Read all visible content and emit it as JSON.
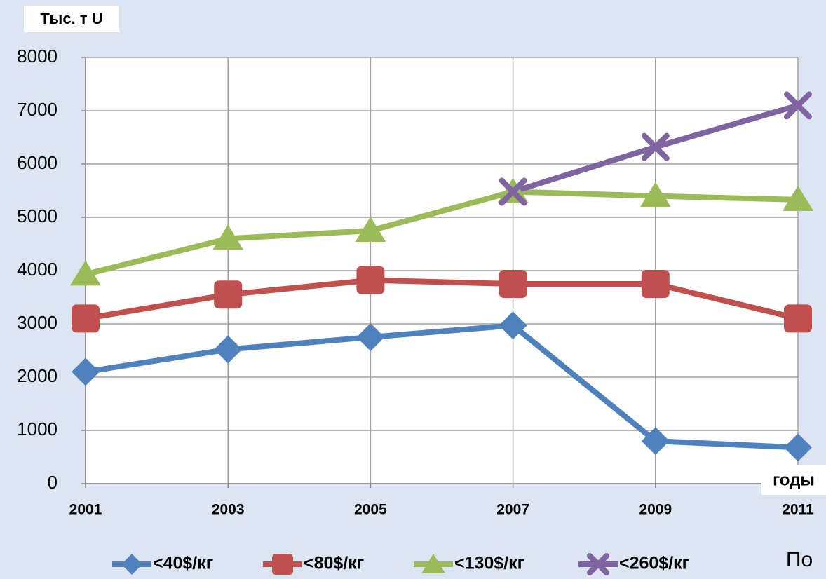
{
  "chart_data": {
    "type": "line",
    "y_label": "Тыс. т U",
    "x_label": "годы",
    "categories": [
      "2001",
      "2003",
      "2005",
      "2007",
      "2009",
      "2011"
    ],
    "series": [
      {
        "name": "<40$/кг",
        "color": "#4f81bd",
        "marker": "diamond",
        "values": [
          2100,
          2520,
          2750,
          2970,
          800,
          680
        ]
      },
      {
        "name": "<80$/кг",
        "color": "#c0504d",
        "marker": "square",
        "values": [
          3100,
          3550,
          3820,
          3750,
          3750,
          3100
        ]
      },
      {
        "name": "<130$/кг",
        "color": "#9bbb59",
        "marker": "triangle",
        "values": [
          3930,
          4600,
          4750,
          5480,
          5400,
          5330
        ]
      },
      {
        "name": "<260$/кг",
        "color": "#8064a2",
        "marker": "x",
        "values": [
          null,
          null,
          null,
          5480,
          6320,
          7100
        ]
      }
    ],
    "ylim": [
      0,
      8000
    ],
    "yticks": [
      0,
      1000,
      2000,
      3000,
      4000,
      5000,
      6000,
      7000,
      8000
    ],
    "grid": true,
    "legend": "bottom",
    "footer_text": "По"
  }
}
